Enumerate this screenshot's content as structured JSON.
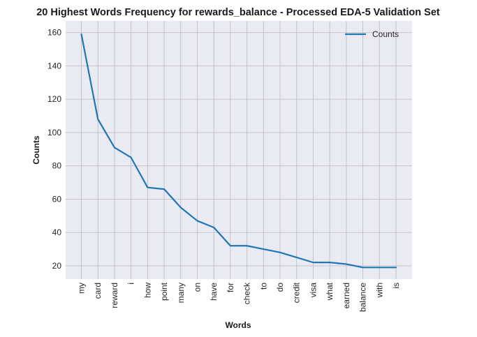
{
  "chart_data": {
    "type": "line",
    "title": "20 Highest Words Frequency for rewards_balance - Processed EDA-5 Validation Set",
    "xlabel": "Words",
    "ylabel": "Counts",
    "categories": [
      "my",
      "card",
      "reward",
      "i",
      "how",
      "point",
      "many",
      "on",
      "have",
      "for",
      "check",
      "to",
      "do",
      "credit",
      "visa",
      "what",
      "earned",
      "balance",
      "with",
      "is"
    ],
    "series": [
      {
        "name": "Counts",
        "color": "#1f77b4",
        "values": [
          159,
          108,
          91,
          85,
          67,
          66,
          55,
          47,
          43,
          32,
          32,
          30,
          28,
          25,
          22,
          22,
          21,
          19,
          19,
          19
        ]
      }
    ],
    "ylim": [
      12,
      167
    ],
    "yticks": [
      20,
      40,
      60,
      80,
      100,
      120,
      140,
      160
    ],
    "grid": true,
    "legend_position": "top-right",
    "background_color": "#eaeaf2",
    "grid_color": "#bfbfc5"
  }
}
